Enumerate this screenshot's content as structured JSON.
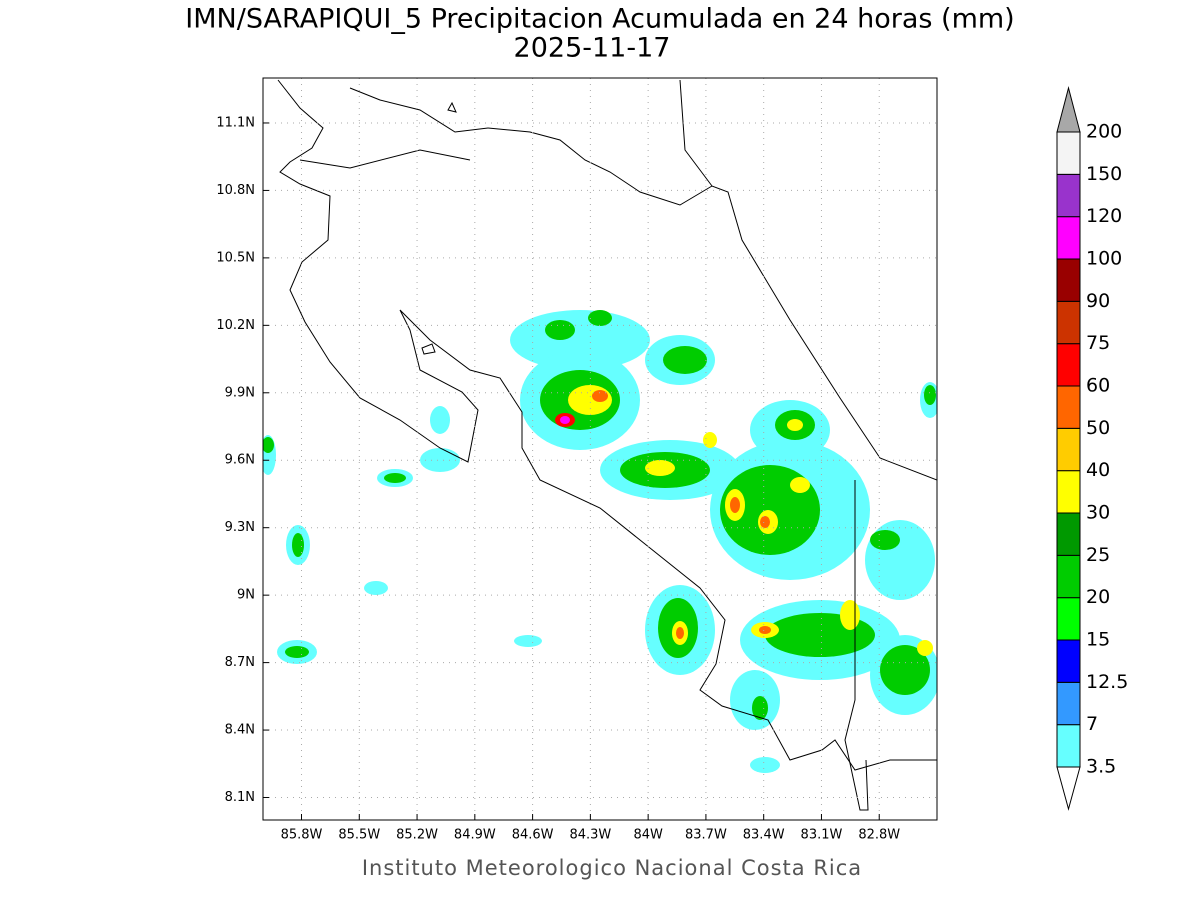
{
  "title": "IMN/SARAPIQUI_5 Precipitacion Acumulada en 24 horas (mm)",
  "subtitle": "2025-11-17",
  "footer": "Instituto Meteorologico Nacional Costa Rica",
  "map": {
    "xlim": [
      -86.0,
      -82.5
    ],
    "ylim": [
      8.0,
      11.3
    ],
    "xticks": [
      {
        "value": -85.8,
        "label": "85.8W"
      },
      {
        "value": -85.5,
        "label": "85.5W"
      },
      {
        "value": -85.2,
        "label": "85.2W"
      },
      {
        "value": -84.9,
        "label": "84.9W"
      },
      {
        "value": -84.6,
        "label": "84.6W"
      },
      {
        "value": -84.3,
        "label": "84.3W"
      },
      {
        "value": -84.0,
        "label": "84W"
      },
      {
        "value": -83.7,
        "label": "83.7W"
      },
      {
        "value": -83.4,
        "label": "83.4W"
      },
      {
        "value": -83.1,
        "label": "83.1W"
      },
      {
        "value": -82.8,
        "label": "82.8W"
      }
    ],
    "yticks": [
      {
        "value": 8.1,
        "label": "8.1N"
      },
      {
        "value": 8.4,
        "label": "8.4N"
      },
      {
        "value": 8.7,
        "label": "8.7N"
      },
      {
        "value": 9.0,
        "label": "9N"
      },
      {
        "value": 9.3,
        "label": "9.3N"
      },
      {
        "value": 9.6,
        "label": "9.6N"
      },
      {
        "value": 9.9,
        "label": "9.9N"
      },
      {
        "value": 10.2,
        "label": "10.2N"
      },
      {
        "value": 10.5,
        "label": "10.5N"
      },
      {
        "value": 10.8,
        "label": "10.8N"
      },
      {
        "value": 11.1,
        "label": "11.1N"
      }
    ]
  },
  "colorbar": {
    "levels": [
      3.5,
      7,
      12.5,
      15,
      20,
      25,
      30,
      40,
      50,
      60,
      75,
      90,
      100,
      120,
      150,
      200
    ],
    "colors": [
      "#66ffff",
      "#3399ff",
      "#0000ff",
      "#00ff00",
      "#00cc00",
      "#009900",
      "#ffff00",
      "#ffcc00",
      "#ff6600",
      "#ff0000",
      "#cc3300",
      "#990000",
      "#ff00ff",
      "#9933cc",
      "#f4f4f4"
    ],
    "under_color": "#ffffff",
    "over_color": "#a8a8a8"
  }
}
